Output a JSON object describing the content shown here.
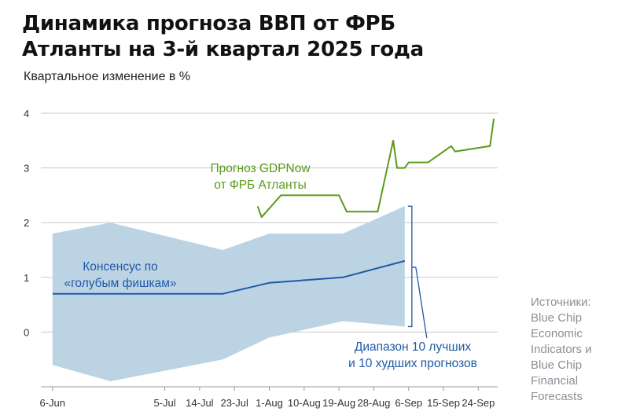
{
  "header": {
    "title_line1": "Динамика прогноза ВВП от ФРБ",
    "title_line2": "Атланты на 3-й квартал 2025 года"
  },
  "sources": {
    "lines": [
      "Источники:",
      "Blue Chip",
      "Economic",
      "Indicators и",
      "Blue Chip",
      "Financial",
      "Forecasts"
    ]
  },
  "colors": {
    "gdpnow": "#5a9a1a",
    "consensus": "#1f5aa6",
    "range": "#bcd3e4",
    "grid": "#c9c9c9",
    "annotation": "#1f5aa6"
  },
  "chart_data": {
    "type": "line",
    "title": "Динамика прогноза ВВП от ФРБ Атланты на 3-й квартал 2025 года",
    "ylabel": "Квартальное изменение в %",
    "xlabel": "",
    "x_ticks": [
      "6-Jun",
      "5-Jul",
      "14-Jul",
      "23-Jul",
      "1-Aug",
      "10-Aug",
      "19-Aug",
      "28-Aug",
      "6-Sep",
      "15-Sep",
      "24-Sep"
    ],
    "x_tick_days": [
      0,
      29,
      38,
      47,
      56,
      65,
      74,
      83,
      92,
      101,
      110
    ],
    "x_range": [
      -3,
      115
    ],
    "y_ticks": [
      0,
      1,
      2,
      3,
      4
    ],
    "ylim": [
      -1,
      4
    ],
    "grid": true,
    "series": [
      {
        "key": "gdpnow",
        "name": "Прогноз GDPNow от ФРБ Атланты",
        "label_lines": [
          "Прогноз GDPNow",
          "от ФРБ Атланты"
        ],
        "x": [
          53,
          54,
          59,
          74,
          76,
          82,
          84,
          88,
          89,
          91,
          92,
          97,
          103,
          104,
          113,
          114
        ],
        "y": [
          2.3,
          2.1,
          2.5,
          2.5,
          2.2,
          2.2,
          2.2,
          3.5,
          3.0,
          3.0,
          3.1,
          3.1,
          3.4,
          3.3,
          3.4,
          3.9
        ]
      },
      {
        "key": "consensus",
        "name": "Консенсус по «голубым фишкам»",
        "label_lines": [
          "Консенсус по",
          "«голубым фишкам»"
        ],
        "x": [
          0,
          44,
          56,
          75,
          91
        ],
        "y": [
          0.7,
          0.7,
          0.9,
          1.0,
          1.3
        ]
      }
    ],
    "range_band": {
      "name": "Диапазон 10 лучших и 10 худших прогнозов",
      "label_lines": [
        "Диапазон 10 лучших",
        "и 10 худших прогнозов"
      ],
      "x": [
        0,
        15,
        44,
        56,
        75,
        91
      ],
      "upper": [
        1.8,
        2.0,
        1.5,
        1.8,
        1.8,
        2.3
      ],
      "lower": [
        -0.6,
        -0.9,
        -0.5,
        -0.1,
        0.2,
        0.1
      ]
    }
  }
}
